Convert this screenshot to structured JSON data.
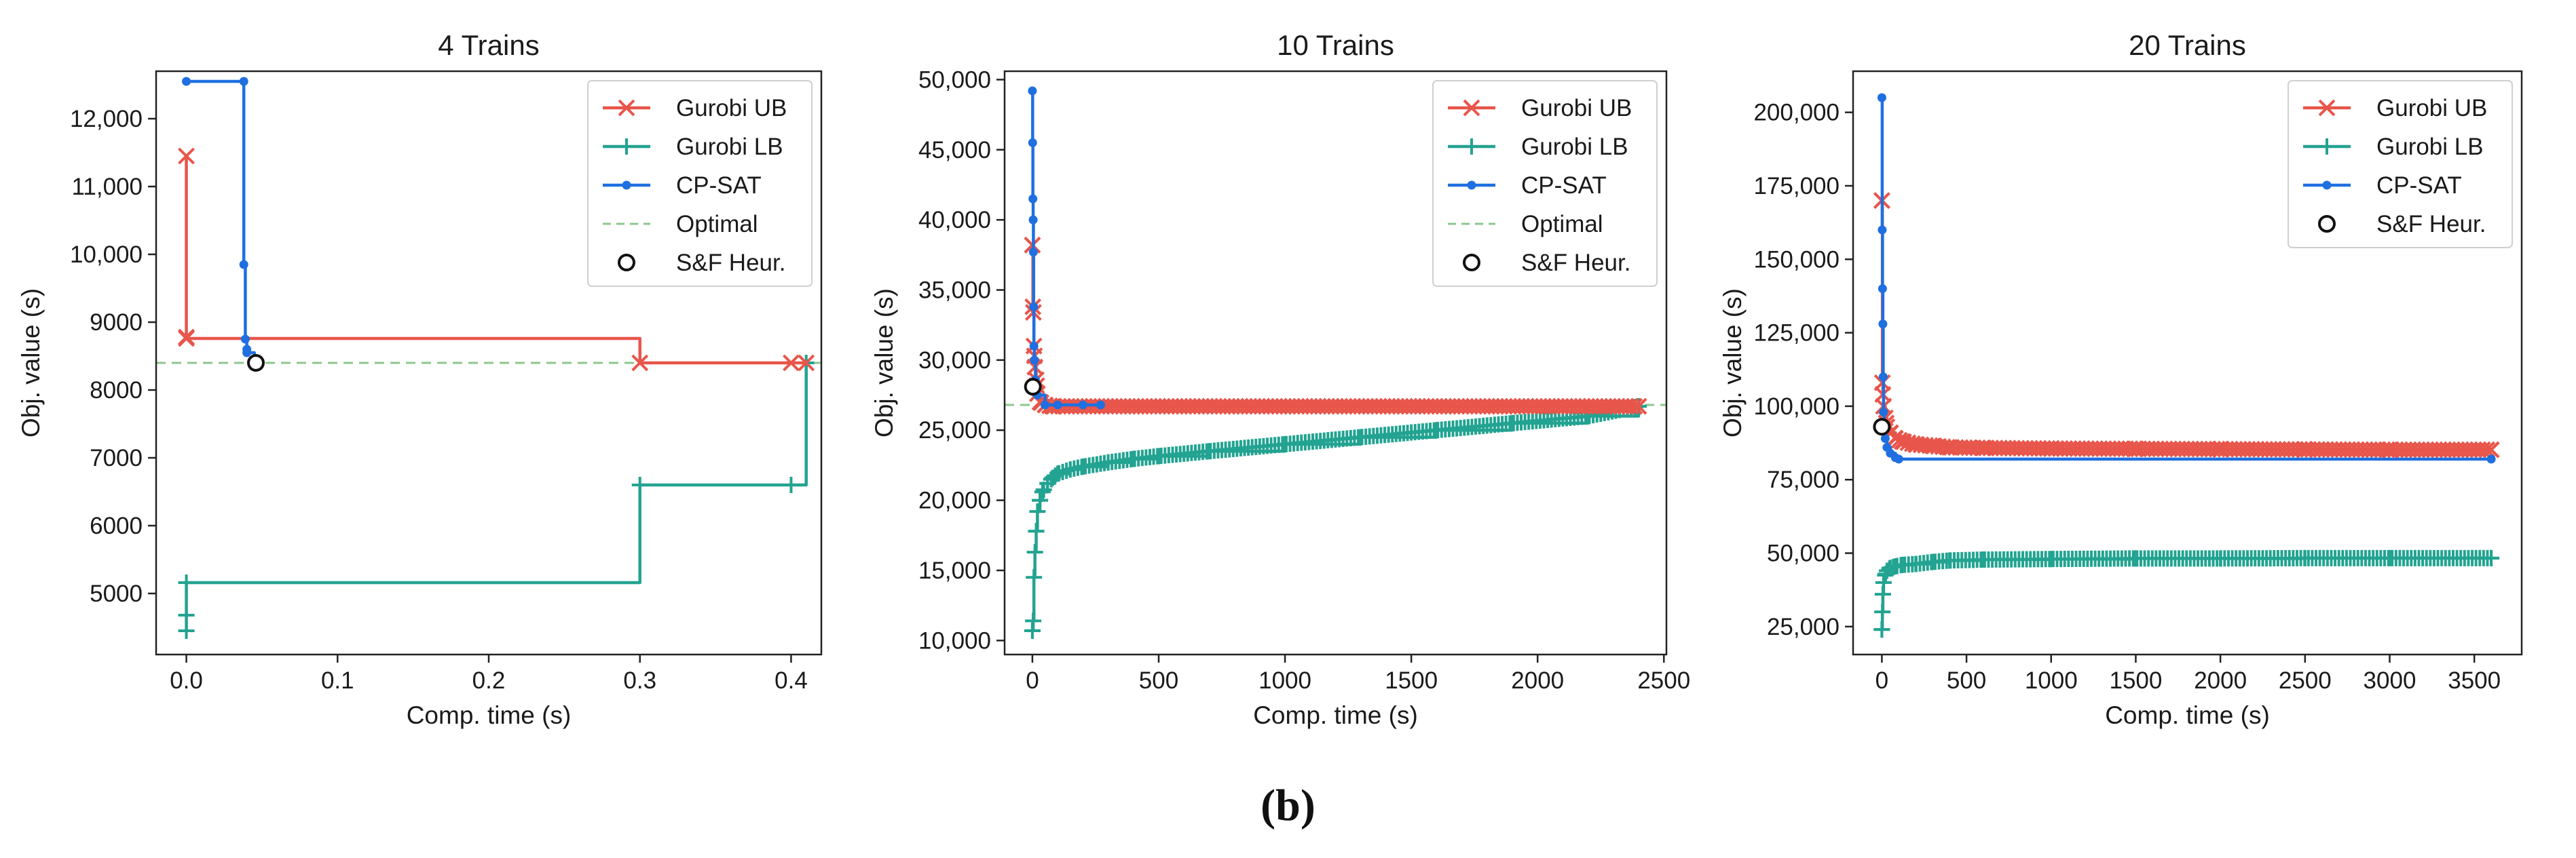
{
  "figure": {
    "caption": "(b)"
  },
  "colors": {
    "ub": "#e8554a",
    "lb": "#23a391",
    "cp": "#1f6fe0",
    "opt": "#8cc78c",
    "axis": "#222222"
  },
  "chart_data": [
    {
      "type": "line",
      "title": "4 Trains",
      "xlabel": "Comp. time (s)",
      "ylabel": "Obj. value (s)",
      "xlim": [
        -0.02,
        0.42
      ],
      "ylim": [
        4100,
        12700
      ],
      "xticks": [
        0.0,
        0.1,
        0.2,
        0.3,
        0.4
      ],
      "xtick_labels": [
        "0.0",
        "0.1",
        "0.2",
        "0.3",
        "0.4"
      ],
      "yticks": [
        5000,
        6000,
        7000,
        8000,
        9000,
        10000,
        11000,
        12000
      ],
      "ytick_labels": [
        "5000",
        "6000",
        "7000",
        "8000",
        "9000",
        "10,000",
        "11,000",
        "12,000"
      ],
      "legend_position": "top-right",
      "optimal": 8400,
      "series": [
        {
          "name": "Gurobi UB",
          "key": "ub",
          "marker": "x",
          "x": [
            0.0,
            0.0,
            0.0,
            0.3,
            0.4,
            0.41
          ],
          "y": [
            11450,
            8780,
            8760,
            8400,
            8400,
            8400
          ]
        },
        {
          "name": "Gurobi LB",
          "key": "lb",
          "marker": "+",
          "x": [
            0.0,
            0.0,
            0.0,
            0.3,
            0.4,
            0.41
          ],
          "y": [
            4450,
            4680,
            5160,
            6600,
            6600,
            8400
          ]
        },
        {
          "name": "CP-SAT",
          "key": "cp",
          "marker": "dot",
          "x": [
            0.0,
            0.038,
            0.038,
            0.039,
            0.04,
            0.04,
            0.045
          ],
          "y": [
            12550,
            12550,
            9850,
            8750,
            8600,
            8550,
            8400
          ]
        },
        {
          "name": "Optimal",
          "key": "opt",
          "marker": "dashed"
        },
        {
          "name": "S&F Heur.",
          "key": "sf",
          "marker": "circle",
          "x": [
            0.046
          ],
          "y": [
            8400
          ]
        }
      ]
    },
    {
      "type": "line",
      "title": "10 Trains",
      "xlabel": "Comp. time (s)",
      "ylabel": "Obj. value (s)",
      "xlim": [
        -110,
        2510
      ],
      "ylim": [
        9000,
        50600
      ],
      "xticks": [
        0,
        500,
        1000,
        1500,
        2000,
        2500
      ],
      "xtick_labels": [
        "0",
        "500",
        "1000",
        "1500",
        "2000",
        "2500"
      ],
      "yticks": [
        10000,
        15000,
        20000,
        25000,
        30000,
        35000,
        40000,
        45000,
        50000
      ],
      "ytick_labels": [
        "10,000",
        "15,000",
        "20,000",
        "25,000",
        "30,000",
        "35,000",
        "40,000",
        "45,000",
        "50,000"
      ],
      "legend_position": "top-right",
      "optimal": 26800,
      "series": [
        {
          "name": "Gurobi UB",
          "key": "ub",
          "marker": "x",
          "x": [
            0,
            2,
            4,
            6,
            8,
            10,
            15,
            20,
            30,
            50,
            80,
            120,
            2400
          ],
          "y": [
            38200,
            33800,
            33400,
            31000,
            30300,
            29500,
            28600,
            27600,
            27000,
            26800,
            26700,
            26700,
            26700
          ]
        },
        {
          "name": "Gurobi LB",
          "key": "lb",
          "marker": "+",
          "x": [
            0,
            3,
            6,
            10,
            15,
            20,
            30,
            40,
            60,
            80,
            100,
            150,
            200,
            300,
            400,
            500,
            700,
            1000,
            1300,
            1600,
            1900,
            2200,
            2400
          ],
          "y": [
            10700,
            11400,
            14500,
            16300,
            17800,
            19200,
            20000,
            20600,
            21200,
            21600,
            21900,
            22200,
            22400,
            22700,
            22950,
            23150,
            23500,
            24000,
            24500,
            25000,
            25500,
            26000,
            26700
          ]
        },
        {
          "name": "CP-SAT",
          "key": "cp",
          "marker": "dot",
          "x": [
            0,
            1,
            2,
            3,
            4,
            5,
            6,
            8,
            12,
            20,
            50,
            100,
            200,
            270
          ],
          "y": [
            49200,
            45500,
            41500,
            40000,
            37700,
            33800,
            31000,
            30000,
            28600,
            27500,
            26800,
            26800,
            26800,
            26800
          ]
        },
        {
          "name": "Optimal",
          "key": "opt",
          "marker": "dashed"
        },
        {
          "name": "S&F Heur.",
          "key": "sf",
          "marker": "circle",
          "x": [
            2
          ],
          "y": [
            28100
          ]
        }
      ]
    },
    {
      "type": "line",
      "title": "20 Trains",
      "xlabel": "Comp. time (s)",
      "ylabel": "Obj. value (s)",
      "xlim": [
        -170,
        3780
      ],
      "ylim": [
        15500,
        214000
      ],
      "xticks": [
        0,
        500,
        1000,
        1500,
        2000,
        2500,
        3000,
        3500
      ],
      "xtick_labels": [
        "0",
        "500",
        "1000",
        "1500",
        "2000",
        "2500",
        "3000",
        "3500"
      ],
      "yticks": [
        25000,
        50000,
        75000,
        100000,
        125000,
        150000,
        175000,
        200000
      ],
      "ytick_labels": [
        "25,000",
        "50,000",
        "75,000",
        "100,000",
        "125,000",
        "150,000",
        "175,000",
        "200,000"
      ],
      "legend_position": "top-right",
      "series": [
        {
          "name": "Gurobi UB",
          "key": "ub",
          "marker": "x",
          "x": [
            0,
            3,
            6,
            10,
            20,
            30,
            50,
            80,
            120,
            200,
            300,
            400,
            600,
            1000,
            1500,
            2000,
            2500,
            3000,
            3600
          ],
          "y": [
            170000,
            108000,
            104000,
            100000,
            96000,
            93000,
            91000,
            89000,
            88000,
            87000,
            86500,
            86000,
            85800,
            85600,
            85500,
            85400,
            85300,
            85200,
            85200
          ]
        },
        {
          "name": "Gurobi LB",
          "key": "lb",
          "marker": "+",
          "x": [
            0,
            3,
            6,
            10,
            20,
            30,
            50,
            80,
            120,
            200,
            300,
            400,
            600,
            1000,
            1500,
            2000,
            2500,
            3000,
            3600
          ],
          "y": [
            24000,
            30000,
            36000,
            40000,
            42500,
            44000,
            45000,
            45500,
            46000,
            46300,
            47000,
            47500,
            47800,
            48000,
            48200,
            48200,
            48300,
            48300,
            48300
          ]
        },
        {
          "name": "CP-SAT",
          "key": "cp",
          "marker": "dot",
          "x": [
            0,
            2,
            4,
            6,
            8,
            10,
            14,
            20,
            30,
            50,
            80,
            100,
            3600
          ],
          "y": [
            205000,
            160000,
            140000,
            128000,
            110000,
            98000,
            92000,
            89000,
            86000,
            84000,
            82500,
            82000,
            82000
          ]
        },
        {
          "name": "S&F Heur.",
          "key": "sf",
          "marker": "circle",
          "x": [
            0
          ],
          "y": [
            93000
          ]
        }
      ]
    }
  ]
}
